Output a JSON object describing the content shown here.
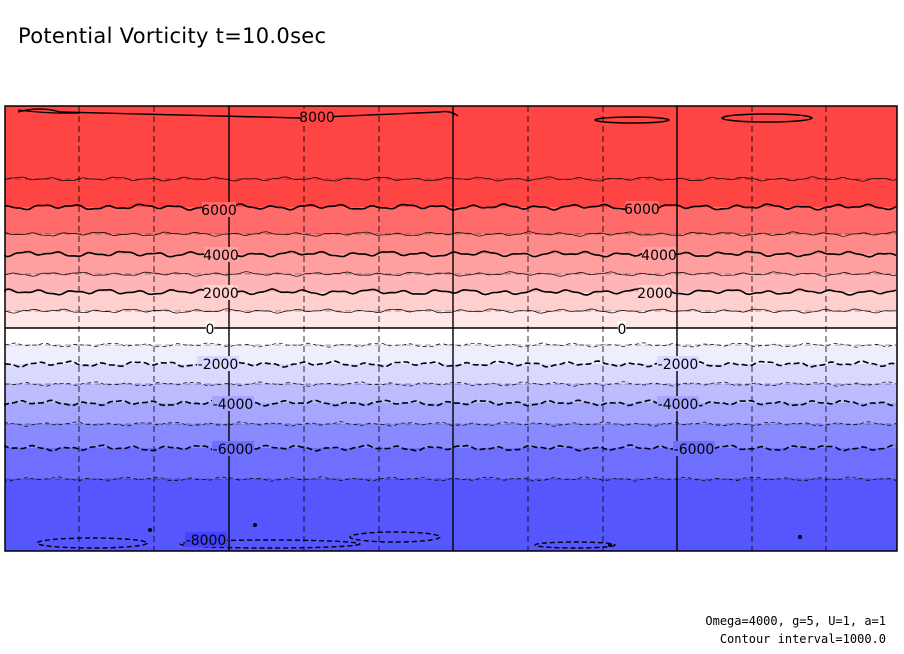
{
  "title": "Potential Vorticity t=10.0sec",
  "footer": {
    "params": "Omega=4000, g=5, U=1, a=1",
    "interval": "Contour interval=1000.0"
  },
  "chart_data": {
    "type": "contour",
    "variable": "Potential Vorticity",
    "time_label": "t=10.0sec",
    "contour_interval": 1000,
    "contour_levels": [
      -8000,
      -7000,
      -6000,
      -5000,
      -4000,
      -3000,
      -2000,
      -1000,
      0,
      1000,
      2000,
      3000,
      4000,
      5000,
      6000,
      7000,
      8000
    ],
    "labeled_levels": [
      8000,
      6000,
      4000,
      2000,
      0,
      -2000,
      -4000,
      -6000,
      -8000
    ],
    "level_labels": [
      "8000",
      "6000",
      "4000",
      "2000",
      "0",
      "-2000",
      "-4000",
      "-6000",
      "-8000"
    ],
    "params": {
      "Omega": 4000,
      "g": 5,
      "U": 1,
      "a": 1
    },
    "fill_colors": {
      "8000": "#ff4444",
      "7000": "#ff4444",
      "6000": "#ff6a6a",
      "5000": "#ff8a8a",
      "4000": "#ff9f9f",
      "3000": "#ffb5b5",
      "2000": "#ffcfcf",
      "1000": "#ffe7e7",
      "0": "#ffffff",
      "-1000": "#eeeeff",
      "-2000": "#d9d9ff",
      "-3000": "#bcbcff",
      "-4000": "#a6a6ff",
      "-5000": "#8a8aff",
      "-6000": "#6f6fff",
      "-7000": "#5656ff",
      "-8000": "#4444ff"
    },
    "grid": "dashed"
  }
}
